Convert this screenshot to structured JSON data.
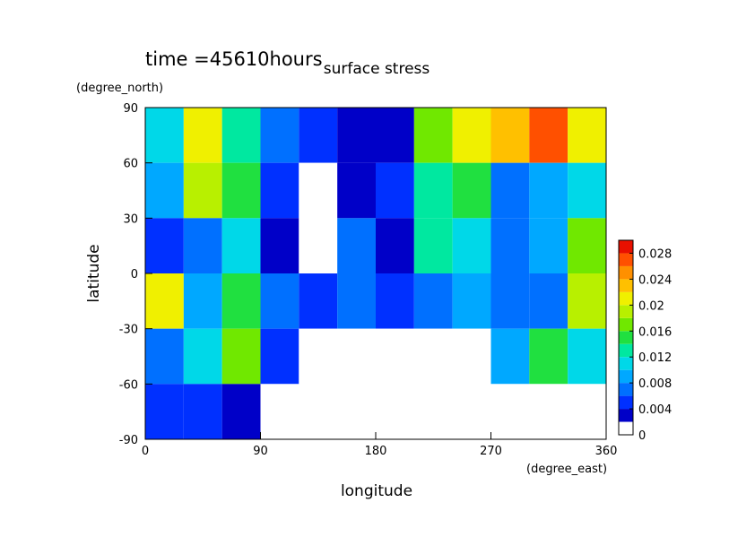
{
  "chart_data": {
    "type": "contour",
    "title": "surface stress",
    "subtitle": "time =45610hours",
    "x_label": "longitude",
    "x_unit": "(degree_east)",
    "y_label": "latitude",
    "y_unit": "(degree_north)",
    "xlim": [
      0,
      360
    ],
    "ylim": [
      -90,
      90
    ],
    "xticks": [
      0,
      90,
      180,
      270,
      360
    ],
    "yticks": [
      -90,
      -60,
      -30,
      0,
      30,
      60,
      90
    ],
    "lon": [
      15,
      45,
      75,
      105,
      135,
      165,
      195,
      225,
      255,
      285,
      315,
      345
    ],
    "lat": [
      75,
      45,
      15,
      -15,
      -45,
      -75
    ],
    "z": [
      [
        0.01,
        0.02,
        0.012,
        0.006,
        0.004,
        0.003,
        0.002,
        0.016,
        0.02,
        0.022,
        0.026,
        0.02
      ],
      [
        0.008,
        0.018,
        0.014,
        0.004,
        0,
        0.002,
        0.004,
        0.012,
        0.014,
        0.006,
        0.008,
        0.01
      ],
      [
        0.004,
        0.006,
        0.01,
        0.002,
        0,
        0.006,
        0.002,
        0.012,
        0.01,
        0.006,
        0.008,
        0.016
      ],
      [
        0.02,
        0.008,
        0.014,
        0.006,
        0.004,
        0.006,
        0.004,
        0.006,
        0.008,
        0.006,
        0.006,
        0.018
      ],
      [
        0.006,
        0.01,
        0.016,
        0.004,
        0,
        0,
        0,
        0,
        0,
        0.008,
        0.014,
        0.01
      ],
      [
        0.004,
        0.004,
        0.002,
        0,
        0,
        0,
        0,
        0,
        0,
        0,
        0,
        0
      ]
    ],
    "levels": [
      0,
      0.002,
      0.004,
      0.006,
      0.008,
      0.01,
      0.012,
      0.014,
      0.016,
      0.018,
      0.02,
      0.022,
      0.024,
      0.026,
      0.028,
      0.03
    ],
    "colors": [
      "#ffffff",
      "#0000c8",
      "#0030ff",
      "#0070ff",
      "#00a8ff",
      "#00d8e8",
      "#00e8a0",
      "#20e040",
      "#70e800",
      "#b8f000",
      "#f0f000",
      "#ffc000",
      "#ff9000",
      "#ff5000",
      "#e81000"
    ],
    "cbar_ticks": [
      0,
      0.004,
      0.008,
      0.012,
      0.016,
      0.02,
      0.024,
      0.028
    ]
  }
}
